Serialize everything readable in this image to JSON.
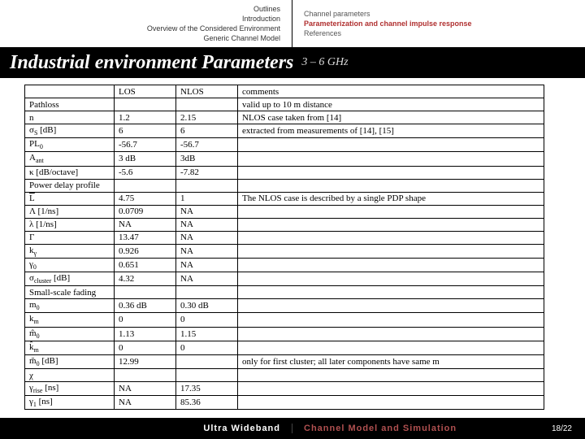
{
  "header": {
    "left": [
      "Outlines",
      "Introduction",
      "Overview of the Considered Environment",
      "Generic Channel Model"
    ],
    "right": [
      "Channel parameters",
      "Parameterization and channel impulse response",
      "References"
    ],
    "right_current_index": 1
  },
  "title": {
    "main": "Industrial environment Parameters",
    "sub": "3 – 6 GHz"
  },
  "table": {
    "head": [
      "",
      "LOS",
      "NLOS",
      "comments"
    ],
    "sections": [
      {
        "title": "Pathloss",
        "comment": "valid up to 10 m distance",
        "rows": [
          {
            "p": "n",
            "l": "1.2",
            "n": "2.15",
            "c": "NLOS case taken from [14]"
          },
          {
            "p": "σ<sub>S</sub> [dB]",
            "l": "6",
            "n": "6",
            "c": "extracted from measurements of [14], [15]"
          },
          {
            "p": "PL<sub>0</sub>",
            "l": "-56.7",
            "n": "-56.7",
            "c": ""
          },
          {
            "p": "A<sub>ant</sub>",
            "l": "3 dB",
            "n": "3dB",
            "c": ""
          },
          {
            "p": "κ [dB/octave]",
            "l": "-5.6",
            "n": "-7.82",
            "c": ""
          }
        ]
      },
      {
        "title": "Power delay profile",
        "comment": "",
        "rows": [
          {
            "p": "<span class='ol'>L</span>",
            "l": "4.75",
            "n": "1",
            "c": "The NLOS case is described by a single PDP shape"
          },
          {
            "p": "Λ [1/ns]",
            "l": "0.0709",
            "n": "NA",
            "c": ""
          },
          {
            "p": "λ [1/ns]",
            "l": "NA",
            "n": "NA",
            "c": ""
          },
          {
            "p": "Γ",
            "l": "13.47",
            "n": "NA",
            "c": ""
          },
          {
            "p": "k<sub>γ</sub>",
            "l": "0.926",
            "n": "NA",
            "c": ""
          },
          {
            "p": "γ<sub>0</sub>",
            "l": "0.651",
            "n": "NA",
            "c": ""
          },
          {
            "p": "σ<sub>cluster</sub> [dB]",
            "l": "4.32",
            "n": "NA",
            "c": ""
          }
        ]
      },
      {
        "title": "Small-scale fading",
        "comment": "",
        "rows": [
          {
            "p": "m<sub>0</sub>",
            "l": "0.36 dB",
            "n": "0.30 dB",
            "c": ""
          },
          {
            "p": "k<sub>m</sub>",
            "l": "0",
            "n": "0",
            "c": ""
          },
          {
            "p": "m&#770;<sub>0</sub>",
            "l": "1.13",
            "n": "1.15",
            "c": ""
          },
          {
            "p": "k&#770;<sub>m</sub>",
            "l": "0",
            "n": "0",
            "c": ""
          },
          {
            "p": "m&#771;<sub>0</sub> [dB]",
            "l": "12.99",
            "n": "",
            "c": "only for first cluster; all later components have same m"
          },
          {
            "p": "χ",
            "l": "",
            "n": "",
            "c": ""
          },
          {
            "p": "γ<sub>rise</sub> [ns]",
            "l": "NA",
            "n": "17.35",
            "c": ""
          },
          {
            "p": "γ<sub>1</sub> [ns]",
            "l": "NA",
            "n": "85.36",
            "c": ""
          }
        ]
      }
    ]
  },
  "footer": {
    "left": "Ultra Wideband",
    "center": "Channel Model and Simulation",
    "page": "18/22"
  }
}
